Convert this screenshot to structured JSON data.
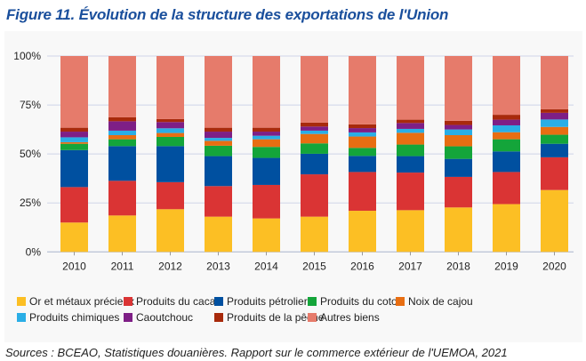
{
  "title": "Figure 11. Évolution de la structure des exportations de l'Union",
  "source": "Sources : BCEAO, Statistiques douanières. Rapport sur le commerce extérieur de l'UEMOA, 2021",
  "chart_data": {
    "type": "bar",
    "stacked": true,
    "title": "Figure 11. Évolution de la structure des exportations de l'Union",
    "xlabel": "",
    "ylabel": "",
    "ylim": [
      0,
      100
    ],
    "yticks": [
      "0%",
      "25%",
      "50%",
      "75%",
      "100%"
    ],
    "grid": true,
    "legend_position": "bottom",
    "categories": [
      "2010",
      "2011",
      "2012",
      "2013",
      "2014",
      "2015",
      "2016",
      "2017",
      "2018",
      "2019",
      "2020"
    ],
    "series": [
      {
        "name": "Or et métaux précieux",
        "color": "#fcbf24",
        "values": [
          15.0,
          18.6,
          21.8,
          18.0,
          17.1,
          18.0,
          21.0,
          21.3,
          22.7,
          24.4,
          31.6
        ]
      },
      {
        "name": "Produits du cacao",
        "color": "#da3434",
        "values": [
          18.1,
          17.7,
          13.8,
          15.6,
          17.1,
          21.6,
          19.8,
          19.2,
          15.6,
          16.4,
          16.7
        ]
      },
      {
        "name": "Produits pétroliers",
        "color": "#0050a0",
        "values": [
          18.9,
          17.7,
          18.4,
          15.3,
          13.8,
          10.5,
          8.2,
          8.4,
          9.2,
          10.5,
          6.9
        ]
      },
      {
        "name": "Produits du coton",
        "color": "#14a53a",
        "values": [
          3.2,
          3.5,
          4.7,
          5.3,
          5.6,
          5.3,
          4.1,
          5.9,
          6.4,
          6.2,
          4.6
        ]
      },
      {
        "name": "Noix de cajou",
        "color": "#e86e12",
        "values": [
          0.8,
          2.1,
          2.0,
          2.5,
          3.9,
          4.8,
          5.8,
          6.0,
          5.7,
          3.6,
          4.0
        ]
      },
      {
        "name": "Produits chimiques",
        "color": "#2aaee6",
        "values": [
          2.5,
          2.3,
          2.4,
          1.5,
          1.8,
          1.7,
          2.1,
          2.0,
          2.9,
          3.5,
          3.8
        ]
      },
      {
        "name": "Caoutchouc",
        "color": "#7e1f86",
        "values": [
          2.9,
          4.8,
          3.2,
          3.2,
          2.1,
          2.1,
          2.2,
          3.0,
          2.3,
          2.9,
          3.4
        ]
      },
      {
        "name": "Produits de la pêche",
        "color": "#a82a0c",
        "values": [
          2.0,
          2.0,
          1.5,
          2.0,
          2.0,
          2.0,
          1.9,
          1.7,
          2.1,
          2.5,
          1.8
        ]
      },
      {
        "name": "Autres biens",
        "color": "#e67b6b",
        "values": [
          36.6,
          31.3,
          32.2,
          36.6,
          36.6,
          34.0,
          34.9,
          32.5,
          33.1,
          30.0,
          27.2
        ]
      }
    ]
  }
}
